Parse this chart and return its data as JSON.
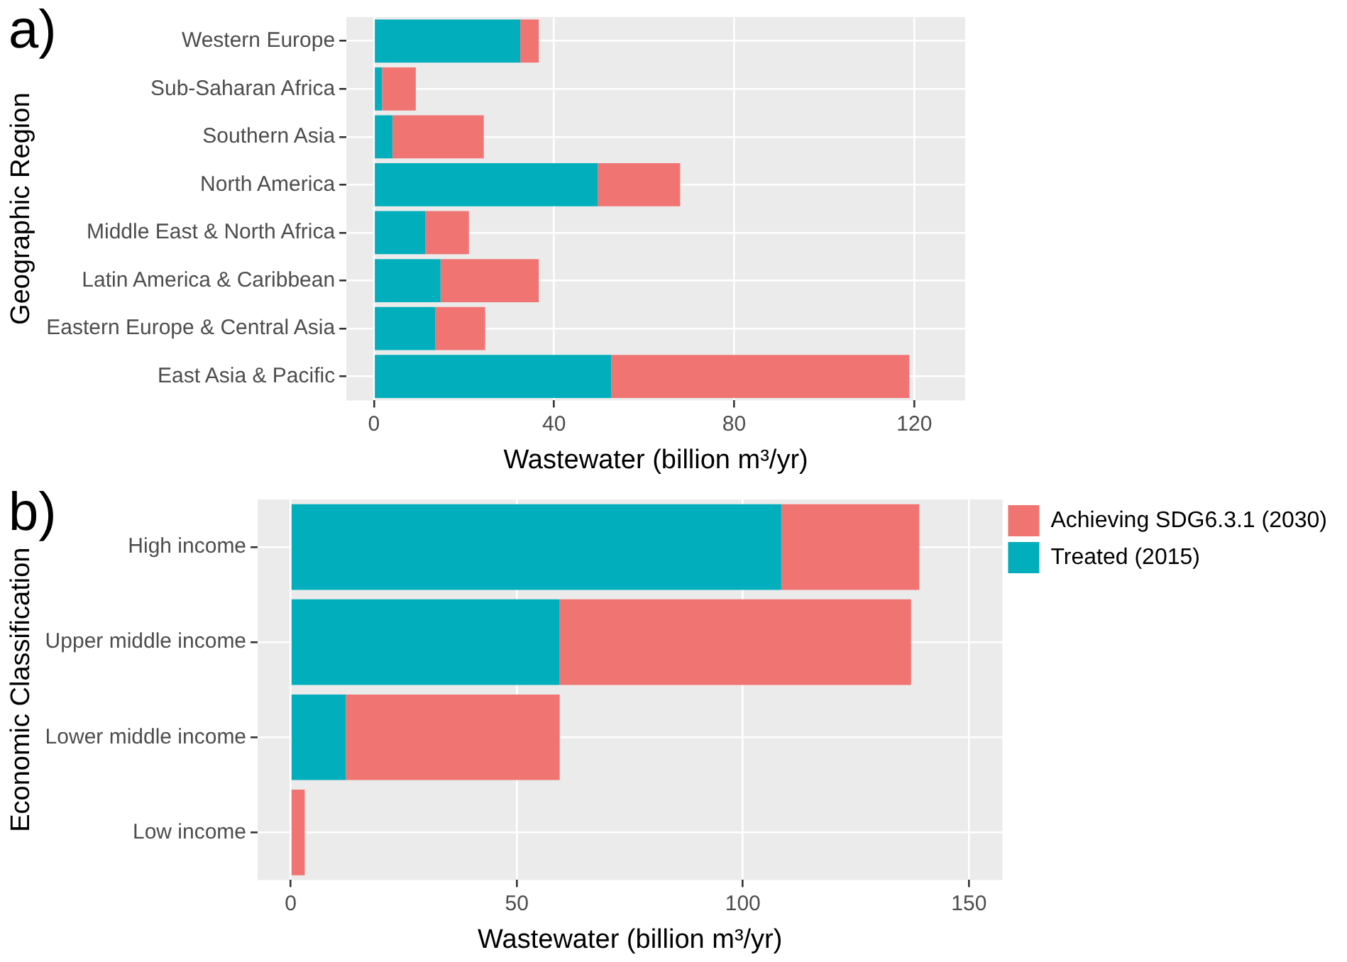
{
  "chart_data": [
    {
      "type": "bar",
      "title": "a)",
      "orientation": "horizontal",
      "stacked": true,
      "ylabel": "Geographic Region",
      "xlabel": "Wastewater (billion m³/yr)",
      "categories": [
        "Western Europe",
        "Sub-Saharan Africa",
        "Southern Asia",
        "North America",
        "Middle East & North Africa",
        "Latin America & Caribbean",
        "Eastern Europe & Central Asia",
        "East Asia & Pacific"
      ],
      "series": [
        {
          "color": "#00afbb",
          "values": [
            32.5,
            1.8,
            4.1,
            49.7,
            11.4,
            14.8,
            13.6,
            52.7
          ]
        },
        {
          "color": "#f07572",
          "values": [
            4.1,
            7.5,
            20.3,
            18.3,
            9.7,
            21.8,
            11.1,
            66.2
          ]
        }
      ],
      "xlim": [
        -6.1,
        131.3
      ],
      "xticks": [
        0,
        40,
        80,
        120
      ],
      "grid": true,
      "legend": false
    },
    {
      "type": "bar",
      "title": "b)",
      "orientation": "horizontal",
      "stacked": true,
      "ylabel": "Economic Classification",
      "xlabel": "Wastewater (billion m³/yr)",
      "categories": [
        "High income",
        "Upper middle income",
        "Lower middle income",
        "Low income"
      ],
      "series": [
        {
          "name": "Treated (2015)",
          "color": "#00afbb",
          "values": [
            108.5,
            59.4,
            12.2,
            0
          ]
        },
        {
          "name": "Achieving SDG6.3.1 (2030)",
          "color": "#f07572",
          "values": [
            30.5,
            77.8,
            47.3,
            3.1
          ]
        }
      ],
      "xlim": [
        -7.3,
        157.4
      ],
      "xticks": [
        0,
        50,
        100,
        150
      ],
      "grid": true,
      "legend": "right"
    }
  ]
}
